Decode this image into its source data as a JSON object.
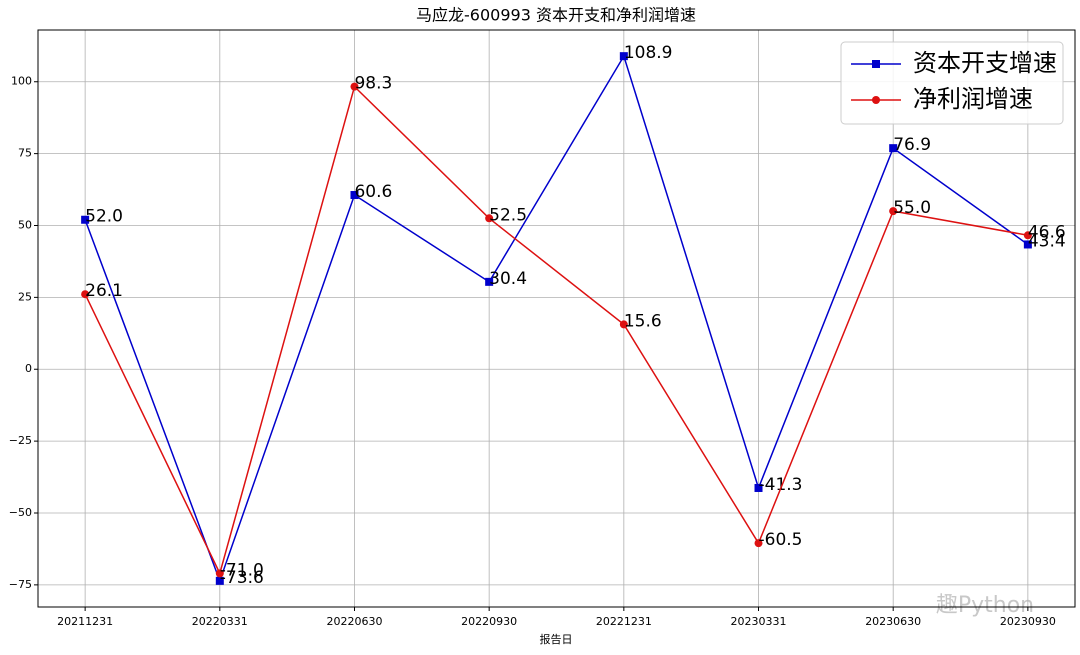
{
  "chart_data": {
    "type": "line",
    "title": "马应龙-600993 资本开支和净利润增速",
    "xlabel": "报告日",
    "watermark": "趣Python",
    "categories": [
      "20211231",
      "20220331",
      "20220630",
      "20220930",
      "20221231",
      "20230331",
      "20230630",
      "20230930"
    ],
    "series": [
      {
        "name": "资本开支增速",
        "color": "#0000cc",
        "marker": "square",
        "values": [
          52.0,
          -73.6,
          60.6,
          30.4,
          108.9,
          -41.3,
          76.9,
          43.4
        ],
        "value_labels": [
          "52.0",
          "-73.6",
          "60.6",
          "30.4",
          "108.9",
          "-41.3",
          "76.9",
          "43.4"
        ]
      },
      {
        "name": "净利润增速",
        "color": "#dd1111",
        "marker": "circle",
        "values": [
          26.1,
          -71.0,
          98.3,
          52.5,
          15.6,
          -60.5,
          55.0,
          46.6
        ],
        "value_labels": [
          "26.1",
          "-71.0",
          "98.3",
          "52.5",
          "15.6",
          "-60.5",
          "55.0",
          "46.6"
        ]
      }
    ],
    "ylim": [
      -82.7,
      118.0
    ],
    "yticks": [
      {
        "value": -75,
        "label": "−75"
      },
      {
        "value": -50,
        "label": "−50"
      },
      {
        "value": -25,
        "label": "−25"
      },
      0,
      25,
      50,
      75,
      100
    ],
    "grid": true,
    "legend": "upper right"
  }
}
